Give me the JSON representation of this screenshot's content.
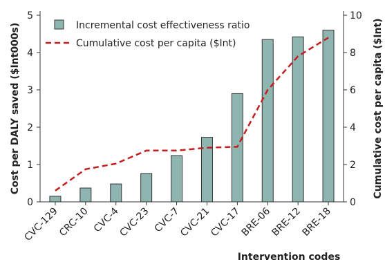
{
  "chart_data": {
    "type": "bar",
    "categories": [
      "CVC-129",
      "CRC-10",
      "CVC-4",
      "CVC-23",
      "CVC-7",
      "CVC-21",
      "CVC-17",
      "BRE-06",
      "BRE-12",
      "BRE-18"
    ],
    "series": [
      {
        "name": "Incremental cost effectiveness ratio",
        "type": "bar",
        "axis": "left",
        "values": [
          0.15,
          0.37,
          0.48,
          0.76,
          1.24,
          1.73,
          2.9,
          4.35,
          4.42,
          4.6
        ]
      },
      {
        "name": "Cumulative cost per capita ($Int)",
        "type": "line",
        "axis": "right",
        "values": [
          0.6,
          1.75,
          2.05,
          2.75,
          2.75,
          2.9,
          2.95,
          6.0,
          7.8,
          8.8
        ]
      }
    ],
    "xlabel": "Intervention codes",
    "ylabel": "Cost per DALY saved ($Int000s)",
    "y2label": "Cumulative cost per capita ($Int)",
    "ylim": [
      0,
      5
    ],
    "y2lim": [
      0,
      10
    ],
    "yticks": [
      0,
      1,
      2,
      3,
      4,
      5
    ],
    "y2ticks": [
      0,
      2,
      4,
      6,
      8,
      10
    ],
    "grid": false,
    "legend": "top-left",
    "colors": {
      "bar_fill": "#8fb5b1",
      "bar_stroke": "#333333",
      "line": "#c41e1e",
      "axis": "#333333"
    }
  }
}
